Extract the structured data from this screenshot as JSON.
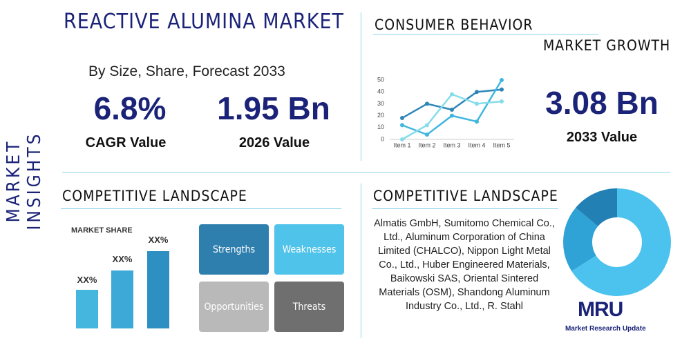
{
  "header": {
    "title": "REACTIVE ALUMINA MARKET",
    "side_label": "MARKET INSIGHTS",
    "subtitle": "By Size, Share, Forecast 2033"
  },
  "stats": [
    {
      "value": "6.8%",
      "label": "CAGR Value"
    },
    {
      "value": "1.95 Bn",
      "label": "2026 Value"
    },
    {
      "value": "3.08 Bn",
      "label": "2033 Value"
    }
  ],
  "consumer": {
    "title": "CONSUMER BEHAVIOR",
    "subtitle": "MARKET GROWTH"
  },
  "chart_data": {
    "type": "line",
    "categories": [
      "Item 1",
      "Item 2",
      "Item 3",
      "Item 4",
      "Item 5"
    ],
    "series": [
      {
        "color": "#2e86b8",
        "values": [
          18,
          30,
          25,
          40,
          42
        ]
      },
      {
        "color": "#3fb6df",
        "values": [
          12,
          4,
          20,
          15,
          50
        ]
      },
      {
        "color": "#86dcea",
        "values": [
          0,
          12,
          38,
          30,
          32
        ]
      }
    ],
    "ylim": [
      0,
      50
    ],
    "yticks": [
      0,
      10,
      20,
      30,
      40,
      50
    ],
    "grid": false
  },
  "landscape_left": {
    "title": "COMPETITIVE LANDSCAPE",
    "market_share_title": "MARKET SHARE",
    "bar_labels": [
      "XX%",
      "XX%",
      "XX%"
    ],
    "swot": [
      "Strengths",
      "Weaknesses",
      "Opportunities",
      "Threats"
    ]
  },
  "landscape_right": {
    "title": "COMPETITIVE LANDSCAPE",
    "companies": "Almatis GmbH, Sumitomo Chemical Co., Ltd., Aluminum Corporation of China Limited (CHALCO), Nippon Light Metal Co., Ltd., Huber Engineered Materials, Baikowski SAS, Oriental Sintered Materials (OSM), Shandong Aluminum Industry Co., Ltd., R. Stahl"
  },
  "logo": {
    "text": "MRU",
    "caption": "Market Research Update"
  }
}
